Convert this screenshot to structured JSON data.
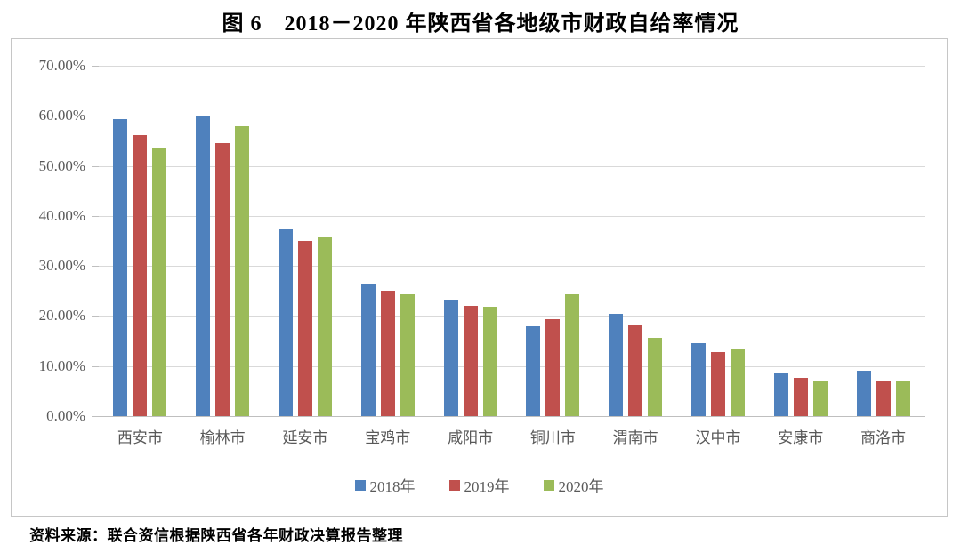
{
  "title": "图 6　2018－2020 年陕西省各地级市财政自给率情况",
  "source_note": "资料来源：联合资信根据陕西省各年财政决算报告整理",
  "chart_data": {
    "type": "bar",
    "title": "图 6　2018－2020 年陕西省各地级市财政自给率情况",
    "categories": [
      "西安市",
      "榆林市",
      "延安市",
      "宝鸡市",
      "咸阳市",
      "铜川市",
      "渭南市",
      "汉中市",
      "安康市",
      "商洛市"
    ],
    "series": [
      {
        "name": "2018年",
        "color": "#4F81BD",
        "values": [
          59.3,
          60.1,
          37.3,
          26.5,
          23.3,
          18.0,
          20.5,
          14.6,
          8.6,
          9.1
        ]
      },
      {
        "name": "2019年",
        "color": "#C0504D",
        "values": [
          56.2,
          54.6,
          35.0,
          25.0,
          22.0,
          19.4,
          18.3,
          12.8,
          7.6,
          6.9
        ]
      },
      {
        "name": "2020年",
        "color": "#9BBB59",
        "values": [
          53.7,
          57.9,
          35.8,
          24.4,
          21.8,
          24.4,
          15.6,
          13.3,
          7.1,
          7.1
        ]
      }
    ],
    "xlabel": "",
    "ylabel": "",
    "ylim": [
      0,
      70
    ],
    "ytick_step": 10,
    "yticks": [
      "70.00%",
      "60.00%",
      "50.00%",
      "40.00%",
      "30.00%",
      "20.00%",
      "10.00%",
      "0.00%"
    ],
    "grid": true,
    "legend_position": "bottom",
    "colors": {
      "grid": "#d9d9d9",
      "axis_text": "#595959",
      "frame_border": "#c6c6c6"
    }
  }
}
